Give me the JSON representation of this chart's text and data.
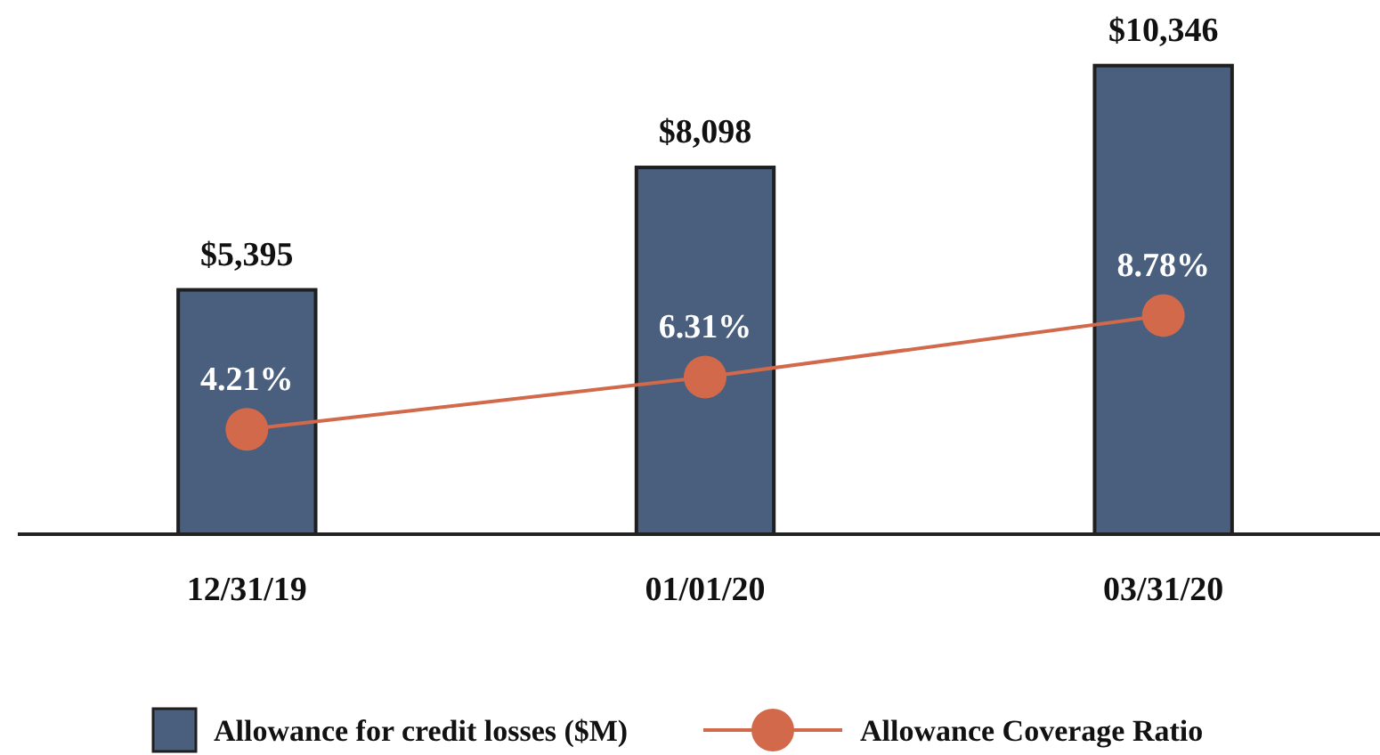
{
  "chart_data": {
    "type": "bar",
    "categories": [
      "12/31/19",
      "01/01/20",
      "03/31/20"
    ],
    "series": [
      {
        "name": "Allowance for credit losses ($M)",
        "color": "#4a5e7d",
        "values": [
          5395,
          8098,
          10346
        ],
        "value_labels": [
          "$5,395",
          "$8,098",
          "$10,346"
        ]
      },
      {
        "name": "Allowance Coverage Ratio",
        "type": "line",
        "axis": "y2",
        "color": "#d2694a",
        "values": [
          4.21,
          6.31,
          8.78
        ],
        "value_labels": [
          "4.21%",
          "6.31%",
          "8.78%"
        ]
      }
    ],
    "tick_labels": "x",
    "marker": "circle",
    "legend": "bottom"
  }
}
